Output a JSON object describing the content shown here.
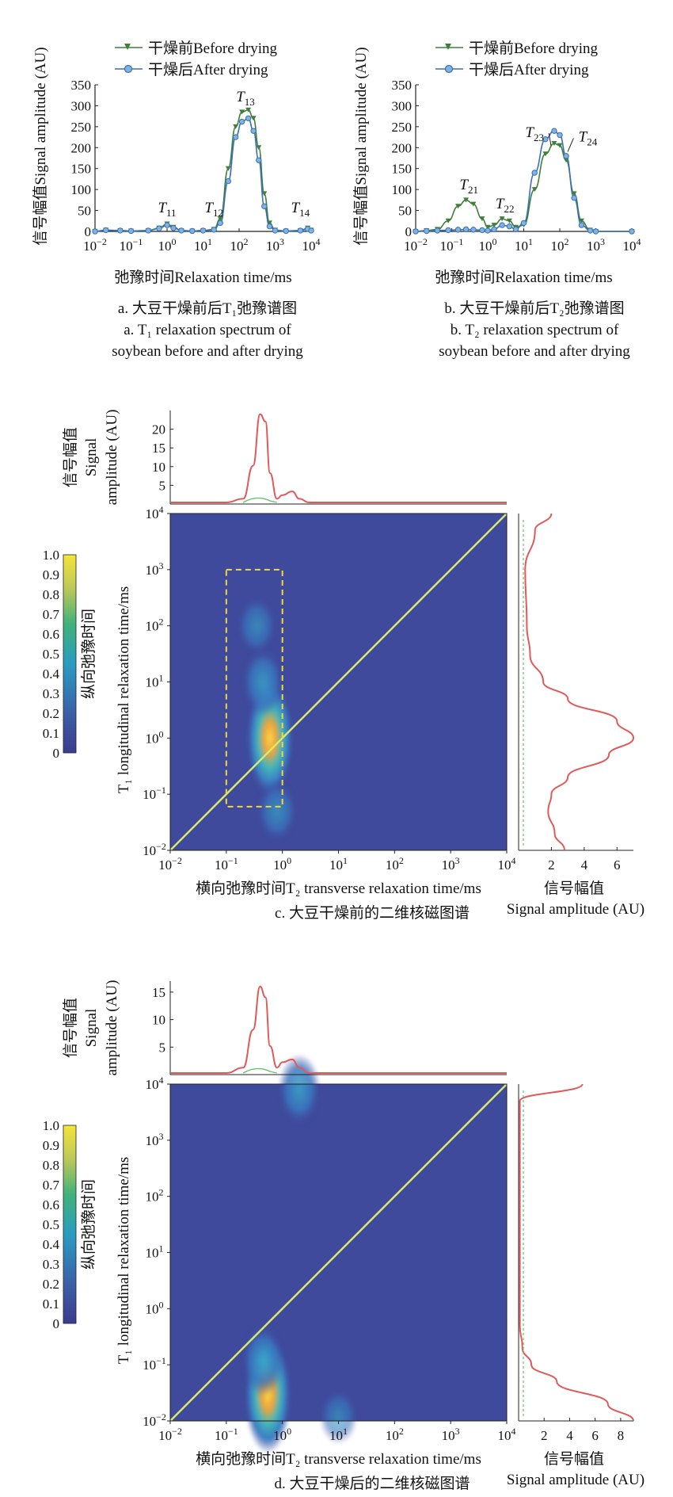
{
  "chart_data": [
    {
      "id": "a",
      "type": "line",
      "xscale": "log",
      "xlim": [
        0.01,
        10000
      ],
      "ylim": [
        0,
        350
      ],
      "xticks": [
        "10",
        "10",
        "10",
        "10",
        "10",
        "10",
        "10"
      ],
      "xtick_exp": [
        "−2",
        "−1",
        "0",
        "1",
        "2",
        "3",
        "4"
      ],
      "yticks": [
        "0",
        "50",
        "100",
        "150",
        "200",
        "250",
        "300",
        "350"
      ],
      "xlabel": "弛豫时间Relaxation time/ms",
      "ylabel": "信号幅值Signal amplitude (AU)",
      "legend": [
        "干燥前Before drying",
        "干燥后After drying"
      ],
      "annotations": [
        {
          "sym": "T",
          "sub": "11",
          "x": 1.0,
          "y": 45
        },
        {
          "sym": "T",
          "sub": "12",
          "x": 20,
          "y": 45
        },
        {
          "sym": "T",
          "sub": "13",
          "x": 150,
          "y": 310
        },
        {
          "sym": "T",
          "sub": "14",
          "x": 5000,
          "y": 45
        }
      ],
      "series": [
        {
          "name": "干燥前Before drying",
          "color": "#3f7f3a",
          "marker": "triangle",
          "x": [
            0.01,
            0.02,
            0.05,
            0.1,
            0.3,
            0.6,
            1,
            1.5,
            2.5,
            5,
            10,
            20,
            30,
            50,
            80,
            120,
            180,
            250,
            350,
            500,
            700,
            1000,
            2000,
            5000,
            8000,
            10000
          ],
          "y": [
            0,
            3,
            2,
            1,
            2,
            8,
            18,
            10,
            2,
            1,
            2,
            5,
            30,
            150,
            250,
            285,
            290,
            270,
            200,
            90,
            20,
            3,
            1,
            2,
            8,
            3
          ]
        },
        {
          "name": "干燥后After drying",
          "color": "#3a6fb5",
          "marker": "circle",
          "x": [
            0.01,
            0.02,
            0.05,
            0.1,
            0.3,
            0.6,
            1,
            1.5,
            2.5,
            5,
            10,
            20,
            30,
            50,
            80,
            120,
            180,
            250,
            350,
            500,
            700,
            1000,
            2000,
            5000,
            8000,
            10000
          ],
          "y": [
            0,
            3,
            2,
            1,
            2,
            7,
            15,
            8,
            2,
            1,
            2,
            4,
            20,
            120,
            225,
            262,
            270,
            240,
            170,
            60,
            12,
            2,
            1,
            2,
            6,
            2
          ]
        }
      ],
      "caption": [
        "a. 大豆干燥前后T₁弛豫谱图",
        "a. T₁ relaxation spectrum of",
        "soybean before and after drying"
      ]
    },
    {
      "id": "b",
      "type": "line",
      "xscale": "log",
      "xlim": [
        0.01,
        10000
      ],
      "ylim": [
        0,
        350
      ],
      "xticks": [
        "10",
        "10",
        "10",
        "10",
        "10",
        "10",
        "10"
      ],
      "xtick_exp": [
        "−2",
        "−1",
        "0",
        "1",
        "2",
        "3",
        "4"
      ],
      "yticks": [
        "0",
        "50",
        "100",
        "150",
        "200",
        "250",
        "300",
        "350"
      ],
      "xlabel": "弛豫时间Relaxation time/ms",
      "ylabel": "信号幅值Signal amplitude (AU)",
      "legend": [
        "干燥前Before drying",
        "干燥后After drying"
      ],
      "annotations": [
        {
          "sym": "T",
          "sub": "21",
          "x": 0.3,
          "y": 100
        },
        {
          "sym": "T",
          "sub": "22",
          "x": 3,
          "y": 55
        },
        {
          "sym": "T",
          "sub": "23",
          "x": 20,
          "y": 225
        },
        {
          "sym": "T",
          "sub": "24",
          "x": 600,
          "y": 215
        }
      ],
      "series": [
        {
          "name": "干燥前Before drying",
          "color": "#3f7f3a",
          "marker": "triangle",
          "x": [
            0.01,
            0.02,
            0.04,
            0.08,
            0.15,
            0.25,
            0.4,
            0.7,
            1,
            1.5,
            2.5,
            4,
            6,
            10,
            20,
            40,
            70,
            100,
            150,
            250,
            400,
            700,
            1000,
            10000
          ],
          "y": [
            0,
            2,
            5,
            25,
            60,
            75,
            65,
            30,
            10,
            15,
            30,
            25,
            10,
            15,
            100,
            185,
            210,
            205,
            170,
            90,
            25,
            3,
            0,
            0
          ]
        },
        {
          "name": "干燥后After drying",
          "color": "#3a6fb5",
          "marker": "circle",
          "x": [
            0.01,
            0.02,
            0.04,
            0.08,
            0.15,
            0.25,
            0.4,
            0.7,
            1,
            1.5,
            2.5,
            4,
            6,
            10,
            20,
            40,
            70,
            100,
            150,
            250,
            400,
            700,
            1000,
            10000
          ],
          "y": [
            0,
            1,
            2,
            3,
            4,
            5,
            4,
            3,
            2,
            5,
            15,
            12,
            5,
            20,
            140,
            220,
            240,
            230,
            180,
            80,
            15,
            2,
            0,
            0
          ]
        }
      ],
      "caption": [
        "b. 大豆干燥前后T₂弛豫谱图",
        "b. T₂ relaxation spectrum of",
        "soybean before and after drying"
      ]
    },
    {
      "id": "c",
      "type": "heatmap",
      "xscale": "log",
      "yscale": "log",
      "xlim": [
        0.01,
        10000
      ],
      "ylim": [
        0.01,
        10000
      ],
      "xlabel": "横向弛豫时间T₂ transverse relaxation time/ms",
      "ylabel": "T₁ longitudinal relaxation time/ms",
      "colorbar_label": "纵向弛豫时间",
      "colorbar_ticks": [
        "0",
        "0.1",
        "0.2",
        "0.3",
        "0.4",
        "0.5",
        "0.6",
        "0.7",
        "0.8",
        "0.9",
        "1.0"
      ],
      "top_projection": {
        "ylabel": [
          "信号幅值",
          "Signal",
          "amplitude (AU)"
        ],
        "yticks": [
          "5",
          "10",
          "15",
          "20"
        ],
        "ylim": [
          0,
          25
        ],
        "x": [
          0.01,
          0.05,
          0.1,
          0.2,
          0.3,
          0.4,
          0.5,
          0.6,
          0.8,
          1,
          1.5,
          2,
          3,
          5,
          10,
          10000
        ],
        "y": [
          0,
          0,
          0,
          1,
          10,
          24,
          22,
          8,
          1,
          2,
          3,
          1,
          0,
          0,
          0,
          0
        ]
      },
      "right_projection": {
        "xlabel": [
          "信号幅值",
          "Signal amplitude (AU)"
        ],
        "xticks": [
          "2",
          "4",
          "6"
        ],
        "xlim": [
          0,
          7
        ],
        "y": [
          0.01,
          0.02,
          0.05,
          0.1,
          0.2,
          0.5,
          1,
          2,
          5,
          10,
          30,
          100,
          1000,
          5000,
          10000
        ],
        "x": [
          2.8,
          2.2,
          1.8,
          2.0,
          3.0,
          5.5,
          7.0,
          6.0,
          3.0,
          1.5,
          0.7,
          0.5,
          0.4,
          1.0,
          2.0
        ]
      },
      "blobs": [
        {
          "x": 0.6,
          "y": 1.0,
          "intensity": 1.0
        },
        {
          "x": 0.45,
          "y": 10,
          "intensity": 0.45
        },
        {
          "x": 0.35,
          "y": 100,
          "intensity": 0.3
        },
        {
          "x": 0.8,
          "y": 0.05,
          "intensity": 0.35
        }
      ],
      "roi": {
        "x": [
          0.1,
          1.0
        ],
        "y": [
          0.06,
          1000
        ]
      },
      "caption": [
        "c. 大豆干燥前的二维核磁图谱"
      ]
    },
    {
      "id": "d",
      "type": "heatmap",
      "xscale": "log",
      "yscale": "log",
      "xlim": [
        0.01,
        10000
      ],
      "ylim": [
        0.01,
        10000
      ],
      "xlabel": "横向弛豫时间T₂ transverse relaxation time/ms",
      "ylabel": "T₁ longitudinal relaxation time/ms",
      "colorbar_label": "纵向弛豫时间",
      "colorbar_ticks": [
        "0",
        "0.1",
        "0.2",
        "0.3",
        "0.4",
        "0.5",
        "0.6",
        "0.7",
        "0.8",
        "0.9",
        "1.0"
      ],
      "top_projection": {
        "ylabel": [
          "信号幅值",
          "Signal",
          "amplitude (AU)"
        ],
        "yticks": [
          "5",
          "10",
          "15"
        ],
        "ylim": [
          0,
          17
        ],
        "x": [
          0.01,
          0.05,
          0.1,
          0.2,
          0.3,
          0.4,
          0.5,
          0.6,
          0.8,
          1,
          1.5,
          2,
          3,
          5,
          10,
          10000
        ],
        "y": [
          0,
          0,
          0,
          1,
          8,
          16,
          14,
          5,
          1,
          2,
          2.5,
          1,
          0,
          0,
          0,
          0
        ]
      },
      "right_projection": {
        "xlabel": [
          "信号幅值",
          "Signal amplitude (AU)"
        ],
        "xticks": [
          "2",
          "4",
          "6",
          "8"
        ],
        "xlim": [
          0,
          9
        ],
        "y": [
          0.01,
          0.02,
          0.05,
          0.1,
          0.2,
          0.5,
          1,
          5,
          100,
          1000,
          5000,
          10000
        ],
        "x": [
          9.0,
          7.0,
          3.0,
          1.0,
          0.3,
          0.1,
          0.1,
          0.1,
          0.1,
          0.1,
          0.1,
          5.0
        ]
      },
      "blobs": [
        {
          "x": 0.55,
          "y": 0.03,
          "intensity": 1.0
        },
        {
          "x": 0.45,
          "y": 0.12,
          "intensity": 0.5
        },
        {
          "x": 2.0,
          "y": 8000,
          "intensity": 0.5
        },
        {
          "x": 10,
          "y": 0.012,
          "intensity": 0.25
        }
      ],
      "caption": [
        "d. 大豆干燥后的二维核磁图谱"
      ]
    }
  ]
}
